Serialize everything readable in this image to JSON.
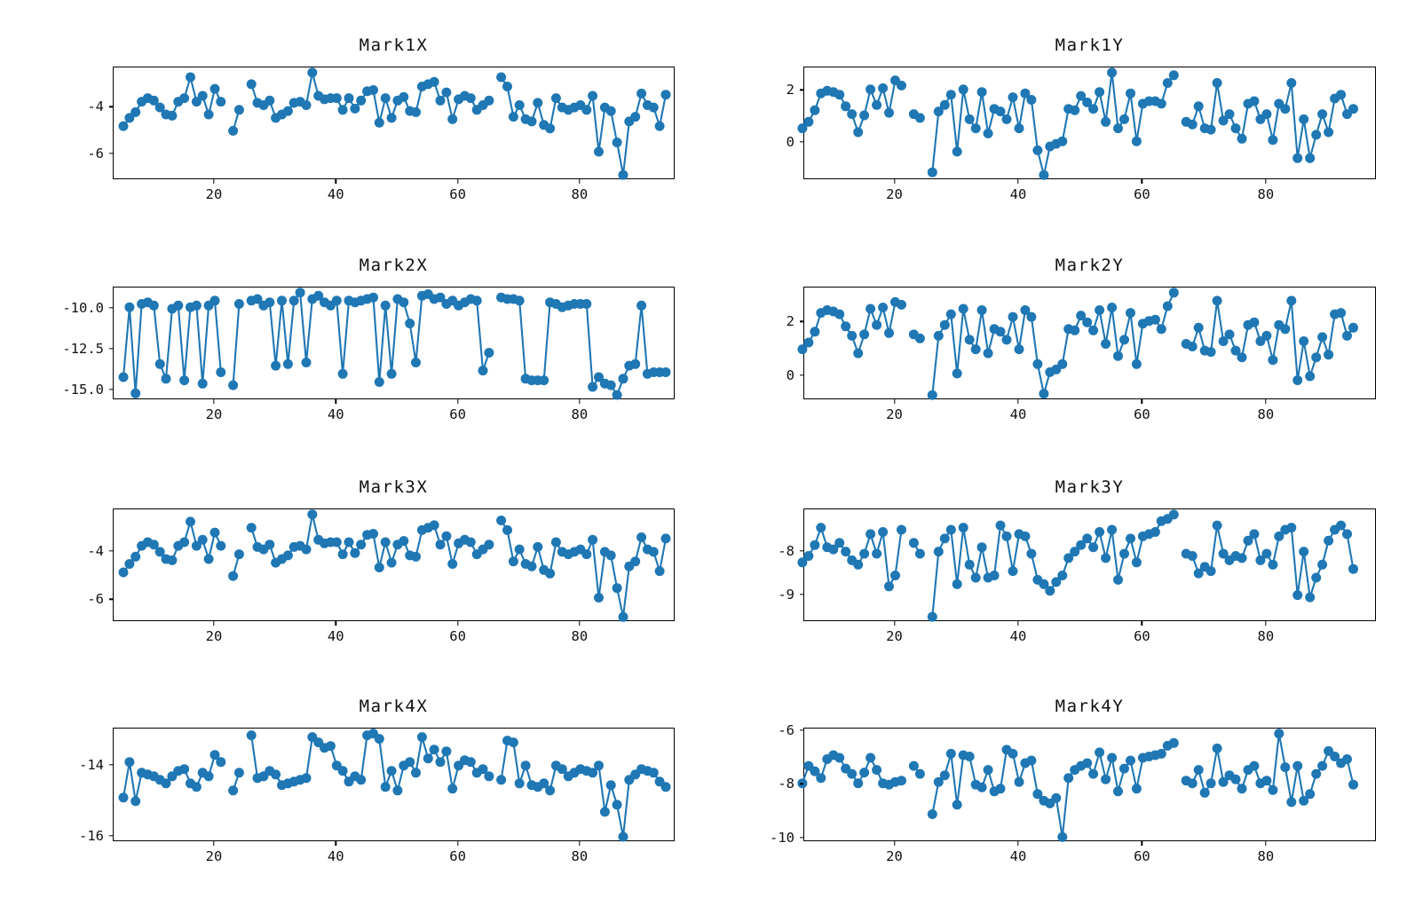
{
  "figure": {
    "background": "#ffffff",
    "accent_color": "#1f77b4",
    "axis_color": "#000000"
  },
  "x_values": [
    5,
    6,
    7,
    8,
    9,
    10,
    11,
    12,
    13,
    14,
    15,
    16,
    17,
    18,
    19,
    20,
    21,
    22,
    23,
    24,
    25,
    26,
    27,
    28,
    29,
    30,
    31,
    32,
    33,
    34,
    35,
    36,
    37,
    38,
    39,
    40,
    41,
    42,
    43,
    44,
    45,
    46,
    47,
    48,
    49,
    50,
    51,
    52,
    53,
    54,
    55,
    56,
    57,
    58,
    59,
    60,
    61,
    62,
    63,
    64,
    65,
    66,
    67,
    68,
    69,
    70,
    71,
    72,
    73,
    74,
    75,
    76,
    77,
    78,
    79,
    80,
    81,
    82,
    83,
    84,
    85,
    86,
    87,
    88,
    89,
    90,
    91,
    92,
    93,
    94
  ],
  "chart_data": [
    {
      "type": "line",
      "title": "Mark1X",
      "marker": "o",
      "color": "#1f77b4",
      "grid": false,
      "xticks": [
        20,
        40,
        60,
        80
      ],
      "xtick_labels": [
        "20",
        "40",
        "60",
        "80"
      ],
      "xlim": [
        3.4,
        95.6
      ],
      "yticks": [
        -4,
        -6
      ],
      "ytick_labels": [
        "-4",
        "-6"
      ],
      "ylim": [
        -7.12,
        -2.28
      ],
      "y": [
        -4.8,
        -4.45,
        -4.2,
        -3.75,
        -3.6,
        -3.7,
        -4.0,
        -4.3,
        -4.35,
        -3.75,
        -3.6,
        -2.7,
        -3.75,
        -3.5,
        -4.3,
        -3.2,
        -3.75,
        null,
        -5.0,
        -4.1,
        null,
        -3.0,
        -3.8,
        -3.9,
        -3.7,
        -4.45,
        -4.3,
        -4.15,
        -3.8,
        -3.75,
        -3.9,
        -2.5,
        -3.5,
        -3.65,
        -3.6,
        -3.6,
        -4.1,
        -3.6,
        -4.05,
        -3.7,
        -3.3,
        -3.25,
        -4.65,
        -3.6,
        -4.45,
        -3.7,
        -3.55,
        -4.15,
        -4.2,
        -3.1,
        -3.0,
        -2.9,
        -3.7,
        -3.35,
        -4.5,
        -3.65,
        -3.5,
        -3.6,
        -4.1,
        -3.9,
        -3.7,
        null,
        -2.7,
        -3.1,
        -4.4,
        -3.9,
        -4.5,
        -4.6,
        -3.8,
        -4.75,
        -4.9,
        -3.6,
        -4.0,
        -4.1,
        -4.0,
        -3.9,
        -4.1,
        -3.5,
        -5.9,
        -4.0,
        -4.15,
        -5.5,
        -6.9,
        -4.6,
        -4.4,
        -3.4,
        -3.9,
        -4.0,
        -4.8,
        -3.45
      ]
    },
    {
      "type": "line",
      "title": "Mark1Y",
      "marker": "o",
      "color": "#1f77b4",
      "grid": false,
      "xticks": [
        20,
        40,
        60,
        80
      ],
      "xtick_labels": [
        "20",
        "40",
        "60",
        "80"
      ],
      "xlim": [
        5.3,
        97.8
      ],
      "yticks": [
        2,
        0
      ],
      "ytick_labels": [
        "2",
        "0"
      ],
      "ylim": [
        -1.45,
        2.9
      ],
      "y": [
        0.55,
        0.8,
        1.25,
        1.9,
        2.0,
        1.95,
        1.85,
        1.4,
        1.1,
        0.4,
        1.05,
        2.05,
        1.45,
        2.1,
        1.15,
        2.4,
        2.2,
        null,
        1.1,
        0.95,
        null,
        -1.15,
        1.2,
        1.45,
        1.85,
        -0.35,
        2.05,
        0.9,
        0.55,
        1.95,
        0.35,
        1.3,
        1.2,
        0.9,
        1.75,
        0.55,
        1.9,
        1.65,
        -0.3,
        -1.25,
        -0.15,
        -0.05,
        0.05,
        1.3,
        1.25,
        1.8,
        1.55,
        1.3,
        1.95,
        0.8,
        2.7,
        0.55,
        0.9,
        1.9,
        0.05,
        1.5,
        1.6,
        1.6,
        1.5,
        2.3,
        2.6,
        null,
        0.8,
        0.7,
        1.4,
        0.55,
        0.5,
        2.3,
        0.85,
        1.1,
        0.55,
        0.15,
        1.5,
        1.6,
        0.9,
        1.1,
        0.1,
        1.5,
        1.3,
        2.3,
        -0.6,
        0.9,
        -0.6,
        0.3,
        1.1,
        0.4,
        1.7,
        1.85,
        1.1,
        1.3
      ]
    },
    {
      "type": "line",
      "title": "Mark2X",
      "marker": "o",
      "color": "#1f77b4",
      "grid": false,
      "xticks": [
        20,
        40,
        60,
        80
      ],
      "xtick_labels": [
        "20",
        "40",
        "60",
        "80"
      ],
      "xlim": [
        3.4,
        95.6
      ],
      "yticks": [
        -10.0,
        -12.5,
        -15.0
      ],
      "ytick_labels": [
        "-10.0",
        "-12.5",
        "-15.0"
      ],
      "ylim": [
        -15.62,
        -8.69
      ],
      "y": [
        -14.2,
        -9.9,
        -15.2,
        -9.7,
        -9.6,
        -9.8,
        -13.4,
        -14.3,
        -10.0,
        -9.8,
        -14.4,
        -9.9,
        -9.8,
        -14.6,
        -9.8,
        -9.5,
        -13.9,
        null,
        -14.7,
        -9.7,
        null,
        -9.5,
        -9.4,
        -9.8,
        -9.6,
        -13.5,
        -9.5,
        -13.4,
        -9.5,
        -9.0,
        -13.3,
        -9.4,
        -9.2,
        -9.6,
        -9.8,
        -9.5,
        -14.0,
        -9.5,
        -9.6,
        -9.5,
        -9.4,
        -9.3,
        -14.5,
        -9.8,
        -14.0,
        -9.4,
        -9.6,
        -10.9,
        -13.3,
        -9.2,
        -9.1,
        -9.4,
        -9.3,
        -9.7,
        -9.5,
        -9.8,
        -9.6,
        -9.4,
        -9.5,
        -13.8,
        -12.7,
        null,
        -9.3,
        -9.4,
        -9.4,
        -9.5,
        -14.3,
        -14.4,
        -14.4,
        -14.4,
        -9.6,
        -9.7,
        -9.9,
        -9.8,
        -9.7,
        -9.7,
        -9.7,
        -14.8,
        -14.2,
        -14.6,
        -14.7,
        -15.3,
        -14.3,
        -13.5,
        -13.4,
        -9.8,
        -14.0,
        -13.9,
        -13.9,
        -13.9
      ]
    },
    {
      "type": "line",
      "title": "Mark2Y",
      "marker": "o",
      "color": "#1f77b4",
      "grid": false,
      "xticks": [
        20,
        40,
        60,
        80
      ],
      "xtick_labels": [
        "20",
        "40",
        "60",
        "80"
      ],
      "xlim": [
        5.3,
        97.8
      ],
      "yticks": [
        2,
        0
      ],
      "ytick_labels": [
        "2",
        "0"
      ],
      "ylim": [
        -0.89,
        3.29
      ],
      "y": [
        1.0,
        1.25,
        1.65,
        2.35,
        2.45,
        2.4,
        2.3,
        1.85,
        1.5,
        0.85,
        1.55,
        2.5,
        1.9,
        2.55,
        1.6,
        2.75,
        2.65,
        null,
        1.55,
        1.4,
        null,
        -0.7,
        1.5,
        1.9,
        2.3,
        0.1,
        2.5,
        1.35,
        1.0,
        2.45,
        0.85,
        1.75,
        1.65,
        1.35,
        2.2,
        1.0,
        2.45,
        2.2,
        0.45,
        -0.65,
        0.15,
        0.25,
        0.45,
        1.75,
        1.7,
        2.25,
        2.0,
        1.7,
        2.45,
        1.2,
        2.55,
        0.75,
        1.35,
        2.35,
        0.45,
        1.95,
        2.05,
        2.1,
        1.75,
        2.6,
        3.1,
        null,
        1.2,
        1.1,
        1.8,
        0.95,
        0.9,
        2.8,
        1.3,
        1.55,
        0.95,
        0.7,
        1.9,
        2.0,
        1.3,
        1.5,
        0.6,
        1.9,
        1.75,
        2.8,
        -0.15,
        1.3,
        0.0,
        0.7,
        1.45,
        0.8,
        2.3,
        2.35,
        1.5,
        1.8
      ]
    },
    {
      "type": "line",
      "title": "Mark3X",
      "marker": "o",
      "color": "#1f77b4",
      "grid": false,
      "xticks": [
        20,
        40,
        60,
        80
      ],
      "xtick_labels": [
        "20",
        "40",
        "60",
        "80"
      ],
      "xlim": [
        3.4,
        95.6
      ],
      "yticks": [
        -4,
        -6
      ],
      "ytick_labels": [
        "-4",
        "-6"
      ],
      "ylim": [
        -6.91,
        -2.24
      ],
      "y": [
        -4.85,
        -4.5,
        -4.2,
        -3.75,
        -3.6,
        -3.7,
        -4.0,
        -4.3,
        -4.35,
        -3.75,
        -3.6,
        -2.75,
        -3.75,
        -3.5,
        -4.3,
        -3.2,
        -3.75,
        null,
        -5.0,
        -4.1,
        null,
        -3.0,
        -3.8,
        -3.9,
        -3.7,
        -4.45,
        -4.3,
        -4.15,
        -3.8,
        -3.75,
        -3.9,
        -2.45,
        -3.5,
        -3.65,
        -3.6,
        -3.6,
        -4.1,
        -3.6,
        -4.05,
        -3.7,
        -3.3,
        -3.25,
        -4.65,
        -3.6,
        -4.45,
        -3.7,
        -3.55,
        -4.15,
        -4.2,
        -3.1,
        -3.0,
        -2.9,
        -3.7,
        -3.35,
        -4.5,
        -3.65,
        -3.5,
        -3.6,
        -4.1,
        -3.9,
        -3.7,
        null,
        -2.7,
        -3.1,
        -4.4,
        -3.9,
        -4.5,
        -4.6,
        -3.8,
        -4.75,
        -4.9,
        -3.6,
        -4.0,
        -4.1,
        -4.0,
        -3.9,
        -4.1,
        -3.5,
        -5.9,
        -4.0,
        -4.15,
        -5.5,
        -6.7,
        -4.6,
        -4.4,
        -3.4,
        -3.9,
        -4.0,
        -4.8,
        -3.45
      ]
    },
    {
      "type": "line",
      "title": "Mark3Y",
      "marker": "o",
      "color": "#1f77b4",
      "grid": false,
      "xticks": [
        20,
        40,
        60,
        80
      ],
      "xtick_labels": [
        "20",
        "40",
        "60",
        "80"
      ],
      "xlim": [
        5.3,
        97.8
      ],
      "yticks": [
        -8,
        -9
      ],
      "ytick_labels": [
        "-8",
        "-9"
      ],
      "ylim": [
        -9.62,
        -7.03
      ],
      "y": [
        -8.25,
        -8.1,
        -7.85,
        -7.45,
        -7.9,
        -7.95,
        -7.8,
        -8.0,
        -8.2,
        -8.3,
        -8.05,
        -7.6,
        -8.05,
        -7.55,
        -8.8,
        -8.55,
        -7.5,
        null,
        -7.8,
        -8.05,
        null,
        -9.5,
        -8.0,
        -7.7,
        -7.5,
        -8.75,
        -7.45,
        -8.3,
        -8.6,
        -7.9,
        -8.6,
        -8.55,
        -7.4,
        -7.65,
        -8.45,
        -7.6,
        -7.65,
        -8.05,
        -8.65,
        -8.75,
        -8.9,
        -8.7,
        -8.55,
        -8.15,
        -8.0,
        -7.85,
        -7.7,
        -7.9,
        -7.55,
        -8.15,
        -7.5,
        -8.65,
        -8.05,
        -7.7,
        -8.25,
        -7.65,
        -7.6,
        -7.55,
        -7.3,
        -7.25,
        -7.15,
        null,
        -8.05,
        -8.1,
        -8.5,
        -8.35,
        -8.45,
        -7.4,
        -8.05,
        -8.2,
        -8.1,
        -8.15,
        -7.75,
        -7.6,
        -8.2,
        -8.05,
        -8.3,
        -7.65,
        -7.5,
        -7.45,
        -9.0,
        -8.0,
        -9.05,
        -8.6,
        -8.3,
        -7.75,
        -7.5,
        -7.4,
        -7.6,
        -8.4
      ]
    },
    {
      "type": "line",
      "title": "Mark4X",
      "marker": "o",
      "color": "#1f77b4",
      "grid": false,
      "xticks": [
        20,
        40,
        60,
        80
      ],
      "xtick_labels": [
        "20",
        "40",
        "60",
        "80"
      ],
      "xlim": [
        3.4,
        95.6
      ],
      "yticks": [
        -14,
        -16
      ],
      "ytick_labels": [
        "-14",
        "-16"
      ],
      "ylim": [
        -16.15,
        -12.96
      ],
      "y": [
        -14.9,
        -13.9,
        -15.0,
        -14.2,
        -14.25,
        -14.3,
        -14.4,
        -14.5,
        -14.3,
        -14.15,
        -14.1,
        -14.5,
        -14.6,
        -14.2,
        -14.3,
        -13.7,
        -13.9,
        null,
        -14.7,
        -14.2,
        null,
        -13.15,
        -14.35,
        -14.3,
        -14.15,
        -14.25,
        -14.55,
        -14.5,
        -14.45,
        -14.4,
        -14.35,
        -13.2,
        -13.35,
        -13.5,
        -13.45,
        -14.0,
        -14.15,
        -14.45,
        -14.3,
        -14.4,
        -13.15,
        -13.1,
        -13.25,
        -14.6,
        -14.15,
        -14.7,
        -14.0,
        -13.9,
        -14.2,
        -13.2,
        -13.8,
        -13.55,
        -13.9,
        -13.6,
        -14.65,
        -14.0,
        -13.85,
        -13.9,
        -14.2,
        -14.1,
        -14.3,
        null,
        -14.4,
        -13.3,
        -13.35,
        -14.5,
        -14.0,
        -14.55,
        -14.6,
        -14.5,
        -14.7,
        -14.0,
        -14.1,
        -14.3,
        -14.2,
        -14.1,
        -14.15,
        -14.2,
        -14.0,
        -15.3,
        -14.55,
        -15.1,
        -16.0,
        -14.4,
        -14.25,
        -14.1,
        -14.15,
        -14.2,
        -14.45,
        -14.6
      ]
    },
    {
      "type": "line",
      "title": "Mark4Y",
      "marker": "o",
      "color": "#1f77b4",
      "grid": false,
      "xticks": [
        20,
        40,
        60,
        80
      ],
      "xtick_labels": [
        "20",
        "40",
        "60",
        "80"
      ],
      "xlim": [
        5.3,
        97.8
      ],
      "yticks": [
        -6,
        -8,
        -10
      ],
      "ytick_labels": [
        "-6",
        "-8",
        "-10"
      ],
      "ylim": [
        -10.14,
        -5.91
      ],
      "y": [
        -7.95,
        -7.3,
        -7.5,
        -7.75,
        -7.05,
        -6.9,
        -7.0,
        -7.4,
        -7.6,
        -7.95,
        -7.55,
        -7.0,
        -7.45,
        -7.95,
        -8.0,
        -7.9,
        -7.85,
        null,
        -7.3,
        -7.6,
        null,
        -9.1,
        -7.9,
        -7.65,
        -6.85,
        -8.75,
        -6.9,
        -6.95,
        -8.0,
        -8.1,
        -7.45,
        -8.25,
        -8.15,
        -6.7,
        -6.85,
        -7.9,
        -7.2,
        -7.1,
        -8.35,
        -8.6,
        -8.7,
        -8.5,
        -9.95,
        -7.75,
        -7.45,
        -7.3,
        -7.2,
        -7.6,
        -6.8,
        -7.8,
        -7.0,
        -8.25,
        -7.4,
        -7.1,
        -8.15,
        -7.0,
        -6.95,
        -6.9,
        -6.85,
        -6.55,
        -6.45,
        null,
        -7.85,
        -7.95,
        -7.45,
        -8.3,
        -7.95,
        -6.65,
        -7.9,
        -7.65,
        -7.8,
        -8.15,
        -7.45,
        -7.3,
        -7.95,
        -7.85,
        -8.2,
        -6.1,
        -7.35,
        -8.65,
        -7.3,
        -8.6,
        -8.35,
        -7.6,
        -7.3,
        -6.75,
        -6.95,
        -7.2,
        -7.05,
        -8.0
      ]
    }
  ]
}
